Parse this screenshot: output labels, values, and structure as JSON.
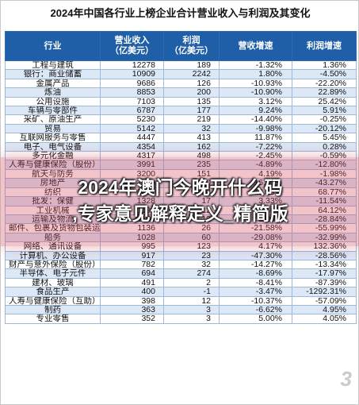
{
  "title": "2024年中国各行业上榜企业合计营业收入与利润及其变化",
  "table": {
    "headers": [
      "行业",
      "营业收入\n（亿美元）",
      "利润\n（亿美元）",
      "营收增速",
      "利润增速"
    ],
    "rows": [
      [
        "工程与建筑",
        "12278",
        "189",
        "-1.32%",
        "1.36%"
      ],
      [
        "银行：商业储蓄",
        "10909",
        "2242",
        "1.80%",
        "-4.50%"
      ],
      [
        "金属产品",
        "9686",
        "126",
        "-10.93%",
        "-22.20%"
      ],
      [
        "炼油",
        "8853",
        "200",
        "-10.90%",
        "22.89%"
      ],
      [
        "公用设施",
        "7103",
        "135",
        "3.12%",
        "25.42%"
      ],
      [
        "车辆与零部件",
        "6787",
        "177",
        "9.24%",
        "5.91%"
      ],
      [
        "采矿、原油生产",
        "5230",
        "219",
        "-14.40%",
        "-0.25%"
      ],
      [
        "贸易",
        "5142",
        "32",
        "-9.98%",
        "-20.12%"
      ],
      [
        "互联网服务与零售",
        "4447",
        "413",
        "11.87%",
        "5.45%"
      ],
      [
        "电子、电气设备",
        "4354",
        "162",
        "-7.22%",
        "0.28%"
      ],
      [
        "多元化金融",
        "4317",
        "498",
        "-2.45%",
        "-0.59%"
      ],
      [
        "人寿与健康保险（股份）",
        "3991",
        "235",
        "-4.89%",
        "-12.80%"
      ],
      [
        "航天与防务",
        "3200",
        "151",
        "4.19%",
        "-1.98%"
      ],
      [
        "房地产",
        "2940",
        "150",
        "-16.30%",
        "-43.27%"
      ],
      [
        "纺织",
        "1881",
        "22",
        "13.43%",
        "68.77%"
      ],
      [
        "批发：保健",
        "1328",
        "17",
        "3.33%",
        "-11.54%"
      ],
      [
        "工业机械",
        "1193",
        "12",
        "-2.50%",
        "64.12%"
      ],
      [
        "运输及物流",
        "1190",
        "12",
        "1.20%",
        "-28.84%"
      ],
      [
        "邮件、包裹及货物包装运输",
        "1136",
        "26",
        "-21.58%",
        "-55.99%"
      ],
      [
        "船务",
        "1028",
        "60",
        "-29.08%",
        "-32.99%"
      ],
      [
        "网络、通讯设备",
        "995",
        "123",
        "4.17%",
        "132.36%"
      ],
      [
        "计算机、办公设备",
        "917",
        "23",
        "-47.30%",
        "-28.56%"
      ],
      [
        "财产与意外保险（股份）",
        "782",
        "32",
        "-14.27%",
        "-13.34%"
      ],
      [
        "半导体、电子元件",
        "694",
        "274",
        "-8.69%",
        "-17.97%"
      ],
      [
        "建材、玻璃",
        "491",
        "2",
        "-8.41%",
        "-87.39%"
      ],
      [
        "食品生产",
        "400",
        "-1",
        "-3.47%",
        "-1292.31%"
      ],
      [
        "人寿与健康保险（互助）",
        "398",
        "12",
        "-10.37%",
        "-57.09%"
      ],
      [
        "制药",
        "363",
        "3",
        "-6.62%",
        "4.95%"
      ],
      [
        "专业零售",
        "352",
        "3",
        "5.00%",
        "4.05%"
      ]
    ]
  },
  "headline": {
    "line1": "2024年澳门今晚开什么码",
    "line2": ",专家意见解释定义_精简版"
  },
  "watermark": "3"
}
